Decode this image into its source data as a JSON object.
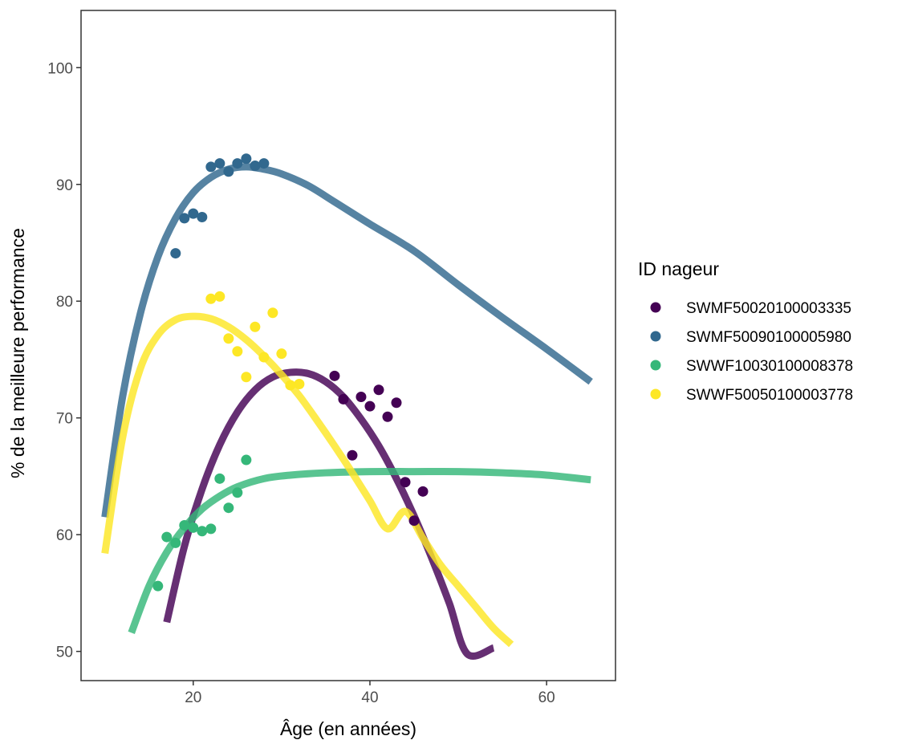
{
  "chart_data": {
    "type": "scatter",
    "title": "",
    "xlabel": "Âge (en années)",
    "ylabel": "% de la meilleure performance",
    "xlim": [
      7.3,
      67.8
    ],
    "ylim": [
      47.5,
      104.9
    ],
    "x_ticks": [
      20,
      40,
      60
    ],
    "y_ticks": [
      50,
      60,
      70,
      80,
      90,
      100
    ],
    "grid": false,
    "legend": {
      "title": "ID nageur",
      "position": "right"
    },
    "series": [
      {
        "name": "SWMF50020100003335",
        "color": "#440154",
        "points": [
          [
            38,
            66.8
          ],
          [
            39,
            71.8
          ],
          [
            40,
            71.0
          ],
          [
            41,
            72.4
          ],
          [
            42,
            70.1
          ],
          [
            43,
            71.3
          ],
          [
            36,
            73.6
          ],
          [
            37,
            71.6
          ],
          [
            44,
            64.5
          ],
          [
            45,
            61.2
          ],
          [
            46,
            63.7
          ]
        ],
        "curve": [
          [
            17,
            52.5
          ],
          [
            19,
            59.0
          ],
          [
            21,
            63.9
          ],
          [
            23,
            67.7
          ],
          [
            25,
            70.5
          ],
          [
            27,
            72.4
          ],
          [
            29,
            73.5
          ],
          [
            31,
            73.9
          ],
          [
            33,
            73.8
          ],
          [
            35,
            73.1
          ],
          [
            37,
            71.8
          ],
          [
            39,
            69.9
          ],
          [
            41,
            67.6
          ],
          [
            43,
            64.8
          ],
          [
            45,
            61.6
          ],
          [
            47,
            58.0
          ],
          [
            49,
            54.1
          ],
          [
            51,
            49.8
          ],
          [
            54,
            50.3
          ]
        ]
      },
      {
        "name": "SWMF50090100005980",
        "color": "#31688E",
        "points": [
          [
            18,
            84.1
          ],
          [
            19,
            87.1
          ],
          [
            20,
            87.5
          ],
          [
            21,
            87.2
          ],
          [
            22,
            91.5
          ],
          [
            23,
            91.8
          ],
          [
            24,
            91.1
          ],
          [
            25,
            91.8
          ],
          [
            26,
            92.2
          ],
          [
            27,
            91.6
          ],
          [
            28,
            91.8
          ]
        ],
        "curve": [
          [
            10,
            61.5
          ],
          [
            12,
            71.8
          ],
          [
            14,
            78.9
          ],
          [
            16,
            83.8
          ],
          [
            18,
            87.1
          ],
          [
            20,
            89.3
          ],
          [
            22,
            90.6
          ],
          [
            24,
            91.3
          ],
          [
            26,
            91.5
          ],
          [
            28,
            91.3
          ],
          [
            30,
            90.9
          ],
          [
            33,
            89.9
          ],
          [
            36,
            88.5
          ],
          [
            40,
            86.6
          ],
          [
            45,
            84.3
          ],
          [
            50,
            81.4
          ],
          [
            55,
            78.6
          ],
          [
            60,
            75.9
          ],
          [
            65,
            73.1
          ]
        ]
      },
      {
        "name": "SWWF10030100008378",
        "color": "#35B779",
        "points": [
          [
            16,
            55.6
          ],
          [
            17,
            59.8
          ],
          [
            18,
            59.3
          ],
          [
            19,
            60.8
          ],
          [
            20,
            60.6
          ],
          [
            21,
            60.3
          ],
          [
            22,
            60.5
          ],
          [
            23,
            64.8
          ],
          [
            24,
            62.3
          ],
          [
            25,
            63.6
          ],
          [
            26,
            66.4
          ]
        ],
        "curve": [
          [
            13,
            51.6
          ],
          [
            15,
            55.6
          ],
          [
            17,
            58.5
          ],
          [
            19,
            60.6
          ],
          [
            21,
            62.2
          ],
          [
            23,
            63.3
          ],
          [
            25,
            64.1
          ],
          [
            28,
            64.8
          ],
          [
            31,
            65.1
          ],
          [
            35,
            65.3
          ],
          [
            40,
            65.4
          ],
          [
            45,
            65.4
          ],
          [
            50,
            65.4
          ],
          [
            55,
            65.3
          ],
          [
            60,
            65.1
          ],
          [
            65,
            64.7
          ]
        ]
      },
      {
        "name": "SWWF50050100003778",
        "color": "#FDE725",
        "points": [
          [
            22,
            80.2
          ],
          [
            23,
            80.4
          ],
          [
            24,
            76.8
          ],
          [
            25,
            75.7
          ],
          [
            26,
            73.5
          ],
          [
            27,
            77.8
          ],
          [
            28,
            75.2
          ],
          [
            29,
            79.0
          ],
          [
            30,
            75.5
          ],
          [
            31,
            72.8
          ],
          [
            32,
            72.9
          ]
        ],
        "curve": [
          [
            10,
            58.4
          ],
          [
            12,
            68.3
          ],
          [
            14,
            74.2
          ],
          [
            16,
            77.1
          ],
          [
            18,
            78.4
          ],
          [
            20,
            78.7
          ],
          [
            22,
            78.5
          ],
          [
            24,
            77.8
          ],
          [
            26,
            76.7
          ],
          [
            28,
            75.3
          ],
          [
            30,
            73.7
          ],
          [
            32,
            71.9
          ],
          [
            34,
            69.8
          ],
          [
            36,
            67.6
          ],
          [
            38,
            65.3
          ],
          [
            40,
            62.9
          ],
          [
            42,
            60.5
          ],
          [
            44,
            62.0
          ],
          [
            46,
            59.7
          ],
          [
            48,
            57.4
          ],
          [
            50,
            55.6
          ],
          [
            52,
            53.8
          ],
          [
            54,
            52.0
          ],
          [
            56,
            50.6
          ]
        ]
      }
    ]
  }
}
